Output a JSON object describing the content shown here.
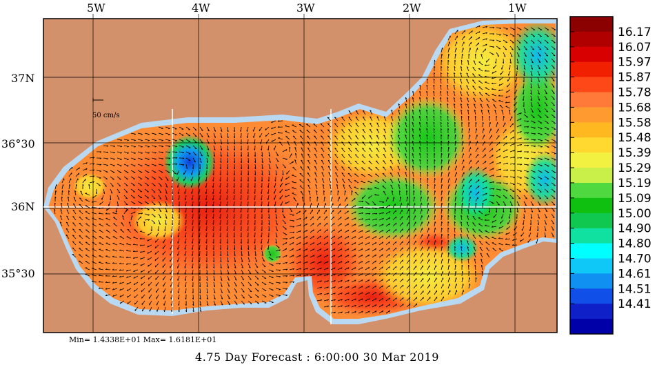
{
  "map": {
    "lon_labels": [
      "5W",
      "4W",
      "3W",
      "2W",
      "1W"
    ],
    "lat_labels": [
      "37N",
      "36°30",
      "36N",
      "35°30"
    ],
    "scale_label": "50 cm/s"
  },
  "colorbar": {
    "labels": [
      "16.17",
      "16.07",
      "15.97",
      "15.87",
      "15.78",
      "15.68",
      "15.58",
      "15.48",
      "15.39",
      "15.29",
      "15.19",
      "15.09",
      "15.00",
      "14.90",
      "14.80",
      "14.70",
      "14.61",
      "14.51",
      "14.41"
    ],
    "colors": [
      "#8b0000",
      "#b00000",
      "#d80000",
      "#f02000",
      "#ff4818",
      "#ff7a38",
      "#ff9a30",
      "#ffb820",
      "#ffd830",
      "#f2f040",
      "#c8f048",
      "#50d840",
      "#10c010",
      "#10c850",
      "#10e0a0",
      "#00ffff",
      "#10c8f8",
      "#1090f0",
      "#1050e8",
      "#1020c8",
      "#0000a8"
    ]
  },
  "stats": {
    "text": "Min= 1.4338E+01  Max= 1.6181E+01"
  },
  "forecast": {
    "text": "4.75 Day Forecast :  6:00:00  30 Mar 2019"
  },
  "colors": {
    "land": "#d2916a",
    "shelf": "#b9d9f2"
  }
}
